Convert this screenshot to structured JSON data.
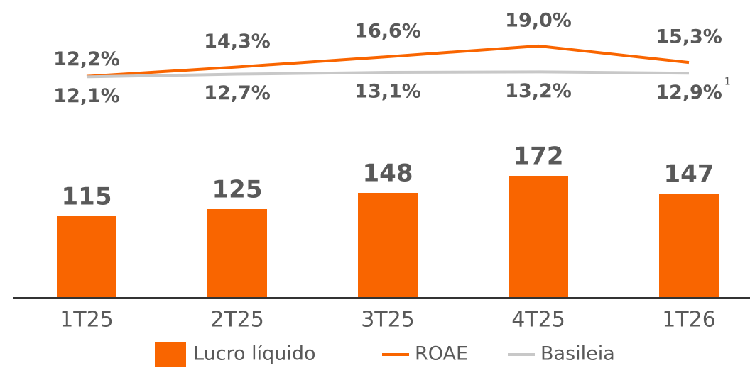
{
  "chart_data": {
    "type": "bar",
    "categories": [
      "1T25",
      "2T25",
      "3T25",
      "4T25",
      "1T26"
    ],
    "ylim": [
      0,
      420
    ],
    "y2lim": [
      -37.4,
      29.3
    ],
    "series": [
      {
        "name": "Lucro líquido",
        "type": "bar",
        "color": "#f96500",
        "values": [
          115,
          125,
          148,
          172,
          147
        ]
      },
      {
        "name": "ROAE",
        "type": "line",
        "axis": "y2",
        "color": "#f96500",
        "values": [
          12.2,
          14.3,
          16.6,
          19.0,
          15.3
        ],
        "value_labels": [
          "12,2%",
          "14,3%",
          "16,6%",
          "19,0%",
          "15,3%"
        ]
      },
      {
        "name": "Basileia",
        "type": "line",
        "axis": "y2",
        "color": "#c8c8c8",
        "values": [
          12.1,
          12.7,
          13.1,
          13.2,
          12.9
        ],
        "value_labels": [
          "12,1%",
          "12,7%",
          "13,1%",
          "13,2%",
          "12,9%"
        ],
        "footnote": "1"
      }
    ],
    "legend": "bottom"
  }
}
